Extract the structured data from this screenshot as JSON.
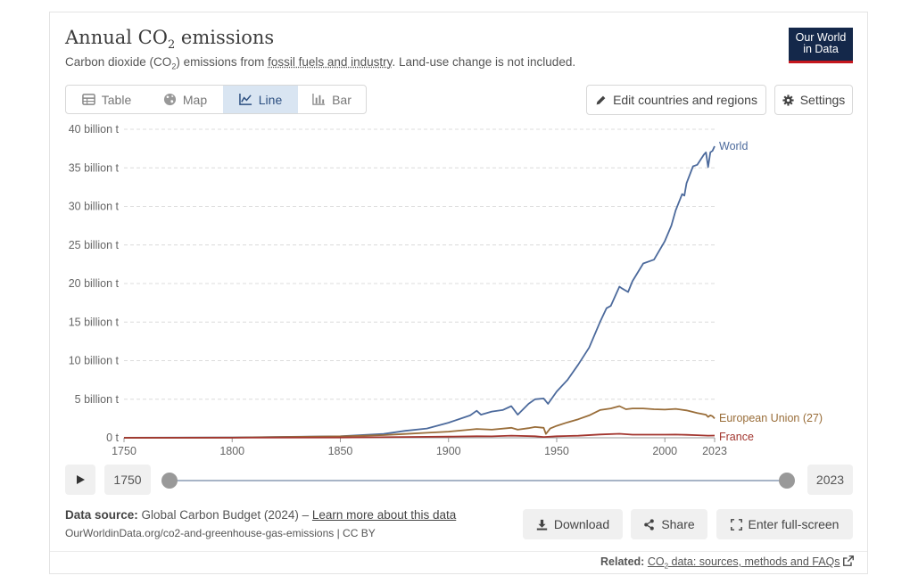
{
  "header": {
    "title_main": "Annual CO",
    "title_sub": "2",
    "title_end": " emissions",
    "subtitle_pre": "Carbon dioxide (CO",
    "subtitle_sub": "2",
    "subtitle_mid": ") emissions from ",
    "subtitle_link": "fossil fuels and industry",
    "subtitle_post": ". Land-use change is not included.",
    "logo_line1": "Our World",
    "logo_line2": "in Data"
  },
  "tabs": [
    {
      "label": "Table",
      "icon": "table-icon",
      "active": false
    },
    {
      "label": "Map",
      "icon": "globe-icon",
      "active": false
    },
    {
      "label": "Line",
      "icon": "line-chart-icon",
      "active": true
    },
    {
      "label": "Bar",
      "icon": "bar-chart-icon",
      "active": false
    }
  ],
  "actions": {
    "edit_label": "Edit countries and regions",
    "settings_label": "Settings"
  },
  "timeline": {
    "start_label": "1750",
    "end_label": "2023"
  },
  "footer": {
    "source_label": "Data source:",
    "source_text": " Global Carbon Budget (2024) – ",
    "learn_more": "Learn more about this data",
    "url_line": "OurWorldinData.org/co2-and-greenhouse-gas-emissions | CC BY",
    "download_label": "Download",
    "share_label": "Share",
    "fullscreen_label": "Enter full-screen",
    "related_label": "Related:",
    "related_link_pre": "CO",
    "related_link_sub": "2",
    "related_link_post": " data: sources, methods and FAQs"
  },
  "colors": {
    "world": "#4c6a9c",
    "eu": "#996d39",
    "france": "#a2352e",
    "accent": "#2d5081"
  },
  "chart_data": {
    "type": "line",
    "title": "Annual CO₂ emissions",
    "xlim": [
      1750,
      2023
    ],
    "ylim": [
      0,
      40
    ],
    "x_ticks": [
      1750,
      1800,
      1850,
      1900,
      1950,
      2000,
      2023
    ],
    "x_tick_labels": [
      "1750",
      "1800",
      "1850",
      "1900",
      "1950",
      "2000",
      "2023"
    ],
    "y_ticks": [
      0,
      5,
      10,
      15,
      20,
      25,
      30,
      35,
      40
    ],
    "y_tick_labels": [
      "0 t",
      "5 billion t",
      "10 billion t",
      "15 billion t",
      "20 billion t",
      "25 billion t",
      "30 billion t",
      "35 billion t",
      "40 billion t"
    ],
    "grid": true,
    "legend": "line-end labels",
    "series": [
      {
        "name": "World",
        "color": "#4c6a9c",
        "x": [
          1750,
          1800,
          1850,
          1870,
          1880,
          1890,
          1900,
          1910,
          1913,
          1915,
          1920,
          1925,
          1929,
          1932,
          1937,
          1940,
          1944,
          1946,
          1950,
          1955,
          1960,
          1965,
          1970,
          1973,
          1975,
          1979,
          1980,
          1983,
          1985,
          1990,
          1995,
          2000,
          2003,
          2005,
          2008,
          2009,
          2010,
          2013,
          2015,
          2018,
          2019,
          2020,
          2021,
          2022,
          2023
        ],
        "y": [
          0.01,
          0.03,
          0.2,
          0.5,
          0.9,
          1.2,
          1.95,
          2.9,
          3.5,
          3.0,
          3.4,
          3.6,
          4.1,
          3.0,
          4.4,
          5.0,
          5.1,
          4.4,
          6.0,
          7.5,
          9.5,
          11.7,
          15.0,
          16.8,
          17.1,
          19.6,
          19.4,
          18.9,
          20.3,
          22.6,
          23.1,
          25.5,
          27.5,
          29.5,
          31.6,
          31.4,
          33.0,
          35.2,
          35.4,
          36.7,
          37.0,
          35.1,
          37.0,
          37.2,
          37.8
        ]
      },
      {
        "name": "European Union (27)",
        "color": "#996d39",
        "x": [
          1750,
          1800,
          1850,
          1870,
          1880,
          1890,
          1900,
          1910,
          1913,
          1920,
          1929,
          1932,
          1937,
          1940,
          1944,
          1945,
          1947,
          1950,
          1955,
          1960,
          1965,
          1970,
          1975,
          1979,
          1982,
          1985,
          1990,
          1995,
          2000,
          2005,
          2010,
          2015,
          2019,
          2020,
          2021,
          2022,
          2023
        ],
        "y": [
          0.005,
          0.02,
          0.18,
          0.35,
          0.5,
          0.65,
          0.8,
          1.05,
          1.15,
          1.05,
          1.3,
          1.05,
          1.25,
          1.4,
          1.3,
          0.5,
          1.2,
          1.55,
          2.0,
          2.4,
          2.9,
          3.6,
          3.8,
          4.1,
          3.7,
          3.8,
          3.8,
          3.7,
          3.65,
          3.75,
          3.55,
          3.2,
          3.0,
          2.7,
          2.9,
          2.8,
          2.5
        ]
      },
      {
        "name": "France",
        "color": "#a2352e",
        "x": [
          1750,
          1800,
          1850,
          1880,
          1900,
          1913,
          1920,
          1929,
          1940,
          1944,
          1945,
          1950,
          1960,
          1970,
          1979,
          1985,
          1990,
          2000,
          2005,
          2010,
          2015,
          2020,
          2023
        ],
        "y": [
          0.002,
          0.01,
          0.04,
          0.1,
          0.15,
          0.2,
          0.18,
          0.28,
          0.2,
          0.1,
          0.12,
          0.2,
          0.27,
          0.43,
          0.52,
          0.4,
          0.4,
          0.41,
          0.42,
          0.38,
          0.33,
          0.28,
          0.29
        ]
      }
    ]
  }
}
